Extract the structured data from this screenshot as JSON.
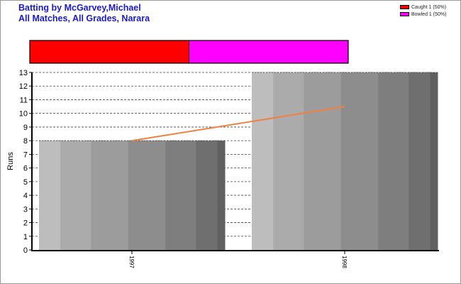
{
  "header": {
    "title_line1": "Batting by McGarvey,Michael",
    "title_line2": "All Matches, All Grades, Narara"
  },
  "legend": [
    {
      "label": "Caught 1 (50%)",
      "color": "#ff0000"
    },
    {
      "label": "Bowled 1 (50%)",
      "color": "#ff00ff"
    }
  ],
  "chart_data": [
    {
      "type": "bar",
      "title": "",
      "categories": [
        "Caught",
        "Bowled"
      ],
      "values": [
        1,
        1
      ],
      "percent": [
        50,
        50
      ],
      "colors": [
        "#ff0000",
        "#ff00ff"
      ],
      "stacked": true
    },
    {
      "type": "bar",
      "categories": [
        "1997",
        "1998"
      ],
      "values": [
        8,
        13
      ],
      "trend": {
        "start": 8,
        "end": 10.5
      },
      "ylabel": "Runs",
      "xlabel": "",
      "ylim": [
        0,
        13
      ],
      "yticks": [
        "0",
        "1",
        "2",
        "3",
        "4",
        "5",
        "6",
        "7",
        "8",
        "9",
        "10",
        "11",
        "12",
        "13"
      ],
      "grid": true,
      "trend_color": "#f08040",
      "bar_shades": [
        "#bdbdbd",
        "#ababab",
        "#9c9c9c",
        "#8d8d8d",
        "#7e7e7e",
        "#6f6f6f",
        "#606060"
      ]
    }
  ]
}
